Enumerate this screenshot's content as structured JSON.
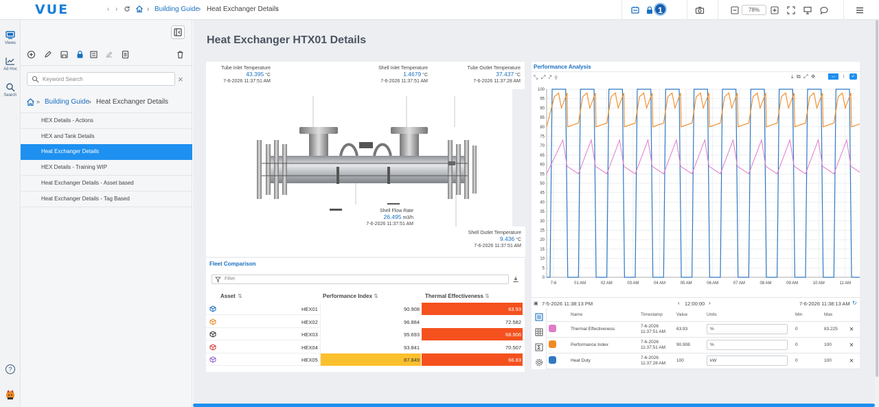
{
  "app": {
    "logo": "VUE"
  },
  "topbar": {
    "breadcrumb_root": "Building Guide",
    "breadcrumb_current": "Heat Exchanger Details",
    "notification_count": "1",
    "zoom": "78%"
  },
  "rail": {
    "views": "Views",
    "adhoc": "Ad Hoc",
    "search": "Search"
  },
  "sidebar": {
    "search_placeholder": "Keyword Search",
    "crumb_root": "Building Guide",
    "crumb_current": "Heat Exchanger Details",
    "items": [
      {
        "label": "HEX Details - Actions"
      },
      {
        "label": "HEX and Tank Details"
      },
      {
        "label": "Heat Exchanger Details"
      },
      {
        "label": "HEX Details - Training WIP"
      },
      {
        "label": "Heat Exchanger Details - Asset based"
      },
      {
        "label": "Heat Exchanger Details - Tag Based"
      }
    ]
  },
  "page": {
    "title": "Heat Exchanger HTX01 Details"
  },
  "sensors": {
    "tube_inlet": {
      "label": "Tube Inlet Temperature",
      "value": "43.395",
      "unit": "°C",
      "time": "7-6-2026 11:37:51 AM"
    },
    "shell_inlet": {
      "label": "Shell Inlet Temperature",
      "value": "1.4679",
      "unit": "°C",
      "time": "7-6-2026 11:37:51 AM"
    },
    "tube_outlet": {
      "label": "Tube Outlet Temperature",
      "value": "37.437",
      "unit": "°C",
      "time": "7-6-2026 11:37:28 AM"
    },
    "shell_flow": {
      "label": "Shell Flow Rate",
      "value": "26.495",
      "unit": "m3/h",
      "time": "7-6-2026 11:37:51 AM"
    },
    "shell_outlet": {
      "label": "Shell Outlet Temperature",
      "value": "9.436",
      "unit": "°C",
      "time": "7-6-2026 11:37:51 AM"
    }
  },
  "fleet": {
    "title": "Fleet Comparison",
    "filter_placeholder": "Filter",
    "col_asset": "Asset",
    "col_perf": "Performance Index",
    "col_therm": "Thermal Effectiveness",
    "rows": [
      {
        "asset": "HEX01",
        "perf": "90.908",
        "therm": "63.93",
        "icon_color": "#1a6fc0",
        "perf_bg": "#ffffff",
        "therm_bg": "#f4511e"
      },
      {
        "asset": "HEX02",
        "perf": "96.884",
        "therm": "72.582",
        "icon_color": "#f08a24",
        "perf_bg": "#ffffff",
        "therm_bg": "#ffffff"
      },
      {
        "asset": "HEX03",
        "perf": "95.693",
        "therm": "68.906",
        "icon_color": "#333333",
        "perf_bg": "#ffffff",
        "therm_bg": "#f4511e"
      },
      {
        "asset": "HEX04",
        "perf": "93.841",
        "therm": "70.507",
        "icon_color": "#d0342c",
        "perf_bg": "#ffffff",
        "therm_bg": "#ffffff"
      },
      {
        "asset": "HEX05",
        "perf": "87.849",
        "therm": "66.83",
        "icon_color": "#8a5cc0",
        "perf_bg": "#fbc02d",
        "therm_bg": "#f4511e"
      }
    ]
  },
  "perf": {
    "title": "Performance Analysis",
    "start": "7-5-2026 11:38:13 PM",
    "interval": "12:00:00",
    "end": "7-6-2026 11:38:13 AM",
    "table_headers": {
      "name": "Name",
      "timestamp": "Timestamp",
      "value": "Value",
      "units": "Units",
      "min": "Min",
      "max": "Max"
    },
    "rows": [
      {
        "name": "Thermal Effectiveness",
        "timestamp": "7-6-2026 11:37:51 AM",
        "value": "63.93",
        "unit": "%",
        "min": "0",
        "max": "83.225",
        "color": "#e07bc8"
      },
      {
        "name": "Performance Index",
        "timestamp": "7-6-2026 11:37:51 AM",
        "value": "90.908",
        "unit": "%",
        "min": "0",
        "max": "100",
        "color": "#f08a24"
      },
      {
        "name": "Heat Duty",
        "timestamp": "7-6-2026 11:37:28 AM",
        "value": "100",
        "unit": "kW",
        "min": "0",
        "max": "100",
        "color": "#2f78c4"
      }
    ]
  },
  "chart_data": {
    "type": "line",
    "x": [
      "7-6",
      "01 AM",
      "02 AM",
      "03 AM",
      "04 AM",
      "05 AM",
      "06 AM",
      "07 AM",
      "08 AM",
      "09 AM",
      "10 AM",
      "11 AM"
    ],
    "ylim": [
      0,
      100
    ],
    "yticks": [
      0,
      5,
      10,
      15,
      20,
      25,
      30,
      35,
      40,
      45,
      50,
      55,
      60,
      65,
      70,
      75,
      80,
      85,
      90,
      95,
      100
    ],
    "grid": true,
    "series": [
      {
        "name": "Heat Duty",
        "color": "#2f78c4",
        "cycle_high": 100,
        "cycle_low": 0
      },
      {
        "name": "Performance Index",
        "color": "#f08a24",
        "cycle_high": 98,
        "cycle_low": 80
      },
      {
        "name": "Thermal Effectiveness",
        "color": "#e07bc8",
        "cycle_high": 73,
        "cycle_low": 55
      }
    ]
  }
}
